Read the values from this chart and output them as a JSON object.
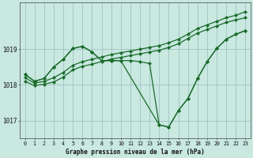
{
  "title": "Graphe pression niveau de la mer (hPa)",
  "bg_color": "#c8e8e0",
  "plot_bg_color": "#c8e8e0",
  "grid_color": "#99bbbb",
  "line_color": "#1a6b2a",
  "xlim": [
    -0.5,
    23.5
  ],
  "ylim": [
    1016.5,
    1020.3
  ],
  "yticks": [
    1017,
    1018,
    1019
  ],
  "xticks": [
    0,
    1,
    2,
    3,
    4,
    5,
    6,
    7,
    8,
    9,
    10,
    11,
    12,
    13,
    14,
    15,
    16,
    17,
    18,
    19,
    20,
    21,
    22,
    23
  ],
  "series1_x": [
    0,
    1,
    2,
    3,
    4,
    5,
    6,
    7,
    8,
    9,
    10,
    11,
    12,
    13,
    14,
    15,
    16,
    17,
    18,
    19,
    20,
    21,
    22,
    23
  ],
  "series1_y": [
    1018.2,
    1018.05,
    1018.1,
    1018.2,
    1018.35,
    1018.55,
    1018.65,
    1018.72,
    1018.78,
    1018.85,
    1018.9,
    1018.95,
    1019.0,
    1019.05,
    1019.1,
    1019.18,
    1019.28,
    1019.42,
    1019.58,
    1019.68,
    1019.78,
    1019.88,
    1019.95,
    1020.05
  ],
  "series2_x": [
    0,
    1,
    2,
    3,
    4,
    5,
    6,
    7,
    8,
    9,
    10,
    11,
    12,
    13,
    14,
    15,
    16,
    17,
    18,
    19,
    20,
    21,
    22,
    23
  ],
  "series2_y": [
    1018.1,
    1017.98,
    1018.02,
    1018.08,
    1018.22,
    1018.42,
    1018.52,
    1018.58,
    1018.65,
    1018.72,
    1018.77,
    1018.82,
    1018.87,
    1018.92,
    1018.97,
    1019.05,
    1019.15,
    1019.3,
    1019.45,
    1019.55,
    1019.65,
    1019.75,
    1019.82,
    1019.88
  ],
  "series3_x": [
    0,
    1,
    2,
    3,
    4,
    5,
    6,
    7,
    8,
    9,
    10,
    11,
    12,
    13,
    14,
    15,
    16,
    17,
    18,
    19,
    20,
    21,
    22,
    23
  ],
  "series3_y": [
    1018.3,
    1018.1,
    1018.18,
    1018.5,
    1018.72,
    1019.02,
    1019.08,
    1018.92,
    1018.68,
    1018.68,
    1018.68,
    1018.68,
    1018.65,
    1018.6,
    1016.88,
    1016.82,
    1017.28,
    1017.62,
    1018.18,
    1018.65,
    1019.02,
    1019.28,
    1019.42,
    1019.52
  ],
  "series4_x": [
    0,
    1,
    2,
    3,
    4,
    5,
    6,
    7,
    8,
    9,
    10,
    14,
    15,
    16,
    17,
    18,
    19,
    20,
    21,
    22,
    23
  ],
  "series4_y": [
    1018.3,
    1018.1,
    1018.18,
    1018.5,
    1018.72,
    1019.02,
    1019.08,
    1018.92,
    1018.68,
    1018.68,
    1018.68,
    1016.88,
    1016.82,
    1017.28,
    1017.62,
    1018.18,
    1018.65,
    1019.02,
    1019.28,
    1019.42,
    1019.52
  ]
}
